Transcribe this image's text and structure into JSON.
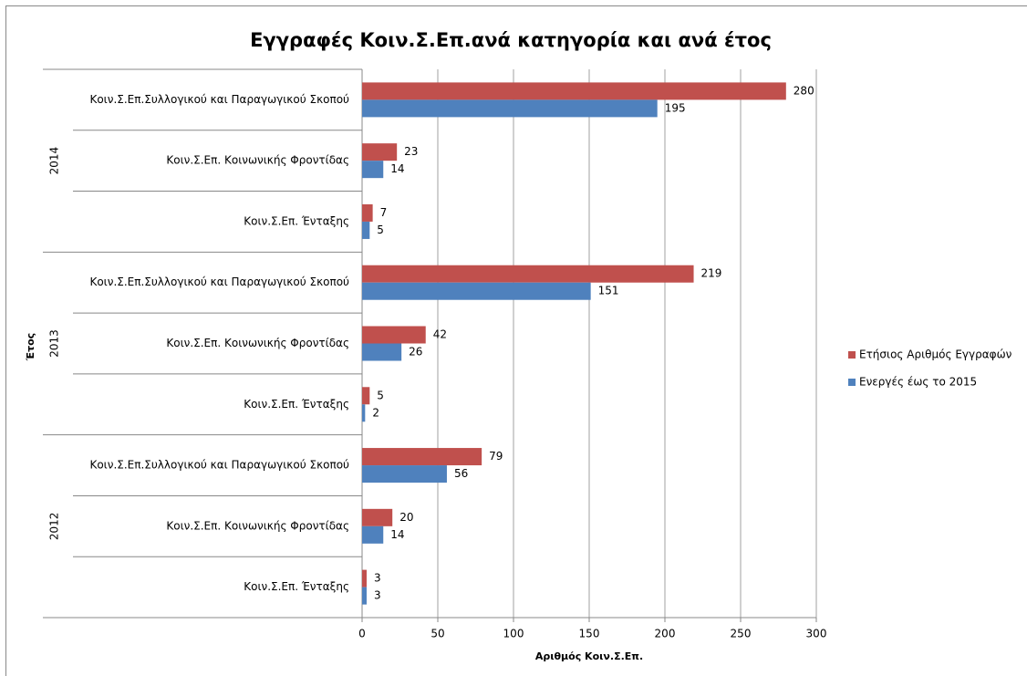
{
  "chart_data": {
    "type": "bar",
    "orientation": "horizontal",
    "title": "Εγγραφές Κοιν.Σ.Επ.ανά κατηγορία και ανά έτος",
    "x_label": "Αριθμός Κοιν.Σ.Επ.",
    "y_label": "Έτος",
    "groups": [
      "2014",
      "2013",
      "2012"
    ],
    "categories": [
      "Κοιν.Σ.Επ.Συλλογικού και Παραγωγικού Σκοπού",
      "Κοιν.Σ.Επ. Κοινωνικής Φροντίδας",
      "Κοιν.Σ.Επ. Ένταξης",
      "Κοιν.Σ.Επ.Συλλογικού και Παραγωγικού Σκοπού",
      "Κοιν.Σ.Επ. Κοινωνικής Φροντίδας",
      "Κοιν.Σ.Επ. Ένταξης",
      "Κοιν.Σ.Επ.Συλλογικού και Παραγωγικού Σκοπού",
      "Κοιν.Σ.Επ. Κοινωνικής Φροντίδας",
      "Κοιν.Σ.Επ. Ένταξης"
    ],
    "series": [
      {
        "name": "Ετήσιος Αριθμός Εγγραφών",
        "color": "#c0504d",
        "values": [
          280,
          23,
          7,
          219,
          42,
          5,
          79,
          20,
          3
        ]
      },
      {
        "name": "Ενεργές έως το 2015",
        "color": "#4f81bd",
        "values": [
          195,
          14,
          5,
          151,
          26,
          2,
          56,
          14,
          3
        ]
      }
    ],
    "xlim": [
      0,
      300
    ],
    "xticks": [
      0,
      50,
      100,
      150,
      200,
      250,
      300
    ],
    "grid": true,
    "legend": "right"
  }
}
